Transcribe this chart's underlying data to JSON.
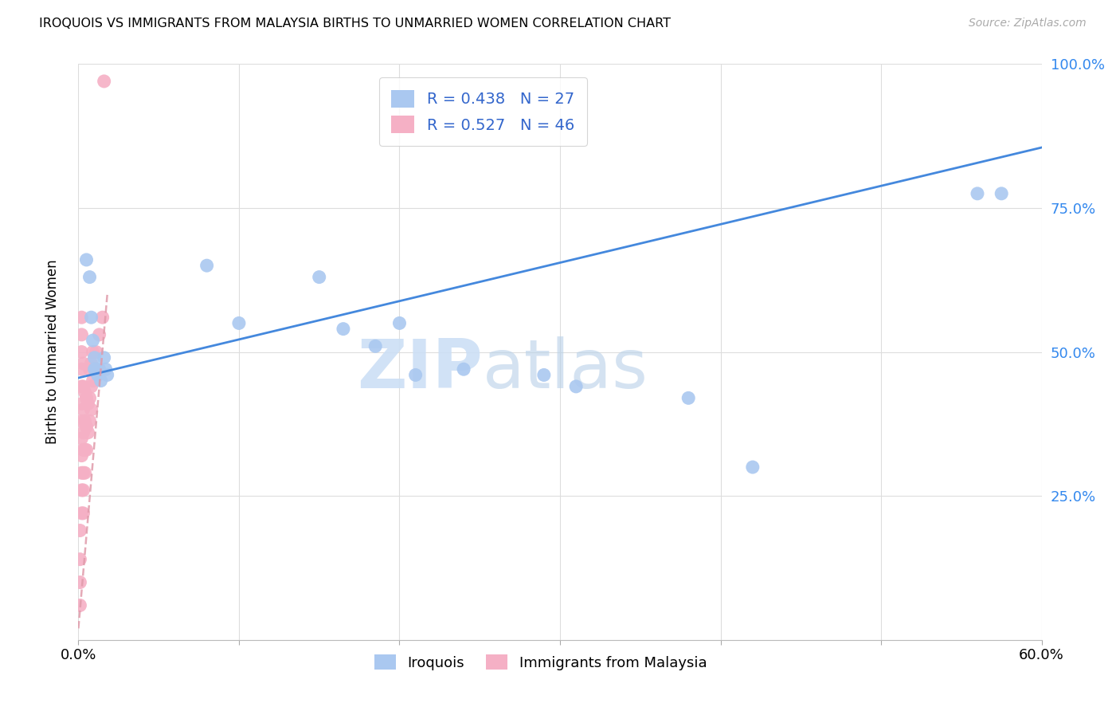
{
  "title": "IROQUOIS VS IMMIGRANTS FROM MALAYSIA BIRTHS TO UNMARRIED WOMEN CORRELATION CHART",
  "source": "Source: ZipAtlas.com",
  "ylabel": "Births to Unmarried Women",
  "xlim": [
    0.0,
    0.6
  ],
  "ylim": [
    0.0,
    1.0
  ],
  "legend_label1": "Iroquois",
  "legend_label2": "Immigrants from Malaysia",
  "R1": 0.438,
  "N1": 27,
  "R2": 0.527,
  "N2": 46,
  "color_blue": "#aac8f0",
  "color_pink": "#f5b0c5",
  "color_line_blue": "#4488dd",
  "color_line_pink": "#e09aaa",
  "watermark_zip": "ZIP",
  "watermark_atlas": "atlas",
  "iroquois_x": [
    0.005,
    0.007,
    0.008,
    0.009,
    0.01,
    0.01,
    0.011,
    0.012,
    0.013,
    0.014,
    0.016,
    0.017,
    0.018,
    0.08,
    0.1,
    0.15,
    0.165,
    0.185,
    0.2,
    0.21,
    0.24,
    0.29,
    0.31,
    0.38,
    0.42,
    0.56,
    0.575
  ],
  "iroquois_y": [
    0.66,
    0.63,
    0.56,
    0.52,
    0.49,
    0.47,
    0.47,
    0.46,
    0.47,
    0.45,
    0.49,
    0.47,
    0.46,
    0.65,
    0.55,
    0.63,
    0.54,
    0.51,
    0.55,
    0.46,
    0.47,
    0.46,
    0.44,
    0.42,
    0.3,
    0.775,
    0.775
  ],
  "malaysia_x": [
    0.001,
    0.001,
    0.001,
    0.001,
    0.002,
    0.002,
    0.002,
    0.002,
    0.002,
    0.002,
    0.002,
    0.002,
    0.002,
    0.002,
    0.002,
    0.002,
    0.003,
    0.003,
    0.003,
    0.003,
    0.003,
    0.003,
    0.003,
    0.003,
    0.004,
    0.004,
    0.004,
    0.004,
    0.005,
    0.005,
    0.005,
    0.006,
    0.006,
    0.007,
    0.007,
    0.007,
    0.008,
    0.008,
    0.008,
    0.009,
    0.009,
    0.01,
    0.011,
    0.013,
    0.015,
    0.016
  ],
  "malaysia_y": [
    0.06,
    0.1,
    0.14,
    0.19,
    0.22,
    0.26,
    0.29,
    0.32,
    0.35,
    0.38,
    0.41,
    0.44,
    0.47,
    0.5,
    0.53,
    0.56,
    0.22,
    0.26,
    0.29,
    0.33,
    0.36,
    0.4,
    0.44,
    0.48,
    0.29,
    0.33,
    0.38,
    0.43,
    0.33,
    0.37,
    0.42,
    0.36,
    0.41,
    0.38,
    0.42,
    0.47,
    0.4,
    0.44,
    0.48,
    0.45,
    0.5,
    0.47,
    0.5,
    0.53,
    0.56,
    0.97
  ],
  "malaysia_outlier_x": [
    0.001
  ],
  "malaysia_outlier_y": [
    0.97
  ],
  "blue_trendline_x": [
    0.0,
    0.6
  ],
  "blue_trendline_y": [
    0.455,
    0.855
  ],
  "pink_trendline_x": [
    0.0,
    0.018
  ],
  "pink_trendline_y": [
    0.02,
    0.6
  ]
}
